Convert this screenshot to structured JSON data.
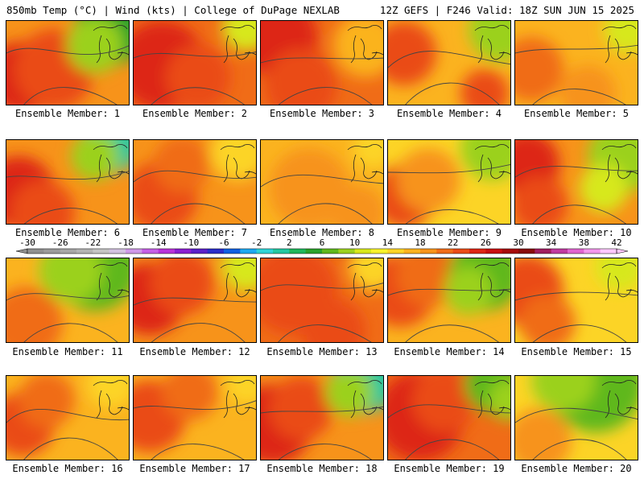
{
  "header": {
    "left": "850mb Temp (°C) | Wind (kts) | College of DuPage NEXLAB",
    "right": "12Z GEFS | F246 Valid: 18Z SUN JUN 15 2025"
  },
  "colorbar": {
    "labels": [
      "-30",
      "-26",
      "-22",
      "-18",
      "-14",
      "-10",
      "-6",
      "-2",
      "2",
      "6",
      "10",
      "14",
      "18",
      "22",
      "26",
      "30",
      "34",
      "38",
      "42"
    ],
    "colors": [
      "#8f8f8f",
      "#9a9a9a",
      "#a6a6a6",
      "#b3b3b3",
      "#c4c4c4",
      "#d2c1e0",
      "#cf98e8",
      "#c55ee6",
      "#b832d9",
      "#8a1fd1",
      "#5a20c8",
      "#2a2ec9",
      "#1060e0",
      "#1da8f0",
      "#2ed3d6",
      "#23c7a1",
      "#1fb65c",
      "#2aa12a",
      "#5fb81d",
      "#9bd11e",
      "#d7e81a",
      "#f7f22a",
      "#fcd426",
      "#fbb31f",
      "#f7931a",
      "#f06c17",
      "#ea4b16",
      "#dd2514",
      "#c90f0f",
      "#a50a0a",
      "#870909",
      "#a01e60",
      "#c03aa0",
      "#e064d0",
      "#f396ec",
      "#ffc8ff"
    ]
  },
  "panels": [
    {
      "label": "Ensemble Member: 1"
    },
    {
      "label": "Ensemble Member: 2"
    },
    {
      "label": "Ensemble Member: 3"
    },
    {
      "label": "Ensemble Member: 4"
    },
    {
      "label": "Ensemble Member: 5"
    },
    {
      "label": "Ensemble Member: 6"
    },
    {
      "label": "Ensemble Member: 7"
    },
    {
      "label": "Ensemble Member: 8"
    },
    {
      "label": "Ensemble Member: 9"
    },
    {
      "label": "Ensemble Member: 10"
    },
    {
      "label": "Ensemble Member: 11"
    },
    {
      "label": "Ensemble Member: 12"
    },
    {
      "label": "Ensemble Member: 13"
    },
    {
      "label": "Ensemble Member: 14"
    },
    {
      "label": "Ensemble Member: 15"
    },
    {
      "label": "Ensemble Member: 16"
    },
    {
      "label": "Ensemble Member: 17"
    },
    {
      "label": "Ensemble Member: 18"
    },
    {
      "label": "Ensemble Member: 19"
    },
    {
      "label": "Ensemble Member: 20"
    }
  ]
}
